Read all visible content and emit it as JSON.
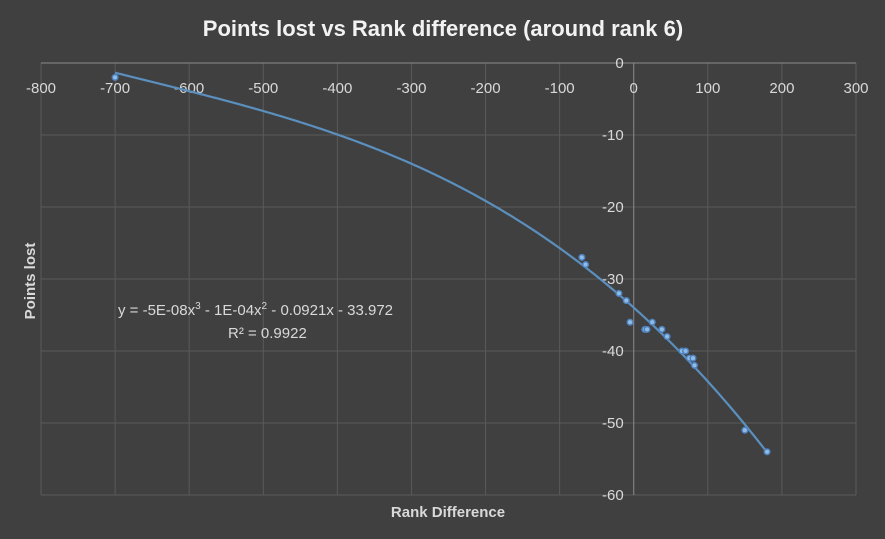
{
  "chart_data": {
    "type": "scatter",
    "title": "Points lost vs Rank difference (around rank 6)",
    "xlabel": "Rank Difference",
    "ylabel": "Points lost",
    "xlim": [
      -800,
      300
    ],
    "ylim": [
      -60,
      0
    ],
    "x_ticks": [
      -800,
      -700,
      -600,
      -500,
      -400,
      -300,
      -200,
      -100,
      0,
      100,
      200,
      300
    ],
    "y_ticks": [
      0,
      -10,
      -20,
      -30,
      -40,
      -50,
      -60
    ],
    "grid": true,
    "legend": "none",
    "series": [
      {
        "points": [
          {
            "x": -700,
            "y": -2
          },
          {
            "x": -70,
            "y": -27
          },
          {
            "x": -65,
            "y": -28
          },
          {
            "x": -20,
            "y": -32
          },
          {
            "x": -10,
            "y": -33
          },
          {
            "x": -5,
            "y": -36
          },
          {
            "x": 15,
            "y": -37
          },
          {
            "x": 18,
            "y": -37
          },
          {
            "x": 25,
            "y": -36
          },
          {
            "x": 38,
            "y": -37
          },
          {
            "x": 45,
            "y": -38
          },
          {
            "x": 65,
            "y": -40
          },
          {
            "x": 70,
            "y": -40
          },
          {
            "x": 75,
            "y": -41
          },
          {
            "x": 80,
            "y": -41
          },
          {
            "x": 82,
            "y": -42
          },
          {
            "x": 150,
            "y": -51
          },
          {
            "x": 180,
            "y": -54
          }
        ]
      }
    ],
    "trendline": {
      "type": "polynomial",
      "coefficients": {
        "a3": -5e-08,
        "a2": -0.0001,
        "a1": -0.0921,
        "a0": -33.972
      },
      "x_range": [
        -700,
        180
      ],
      "equation_parts": {
        "prefix": "y = -5E-08x",
        "exp1": "3",
        "mid": " - 1E-04x",
        "exp2": "2",
        "suffix": " - 0.0921x - 33.972"
      },
      "r2_label": "R² = 0.9922"
    },
    "colors": {
      "background": "#404040",
      "grid": "#5a5a5a",
      "axis": "#8c8c8c",
      "trend": "#5b8fbe",
      "point_fill": "#8fbce6",
      "point_stroke": "#4f81bd"
    }
  }
}
